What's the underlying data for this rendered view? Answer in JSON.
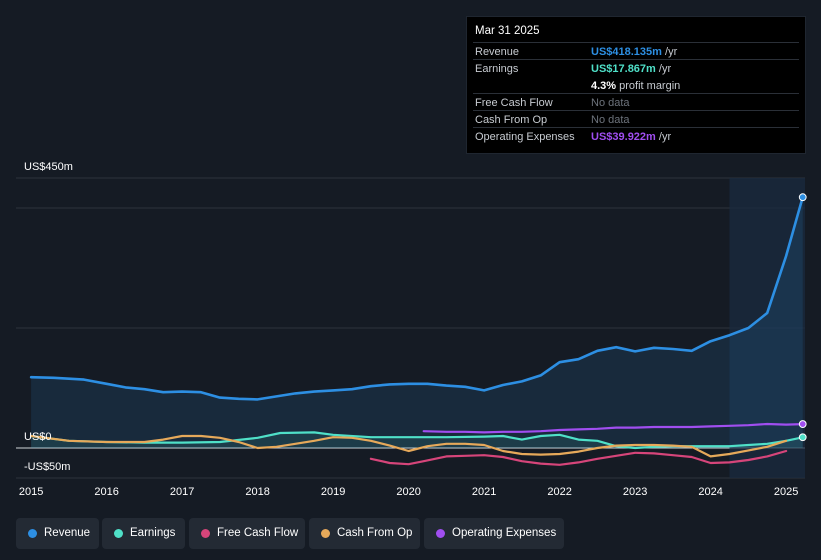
{
  "tooltip": {
    "date": "Mar 31 2025",
    "rows": [
      {
        "label": "Revenue",
        "value": "US$418.135m",
        "unit": "/yr",
        "color": "#2d8fe3"
      },
      {
        "label": "Earnings",
        "value": "US$17.867m",
        "unit": "/yr",
        "color": "#4fe0c8"
      },
      {
        "label": "",
        "value": "4.3%",
        "unit": "profit margin",
        "color": "#ffffff"
      },
      {
        "label": "Free Cash Flow",
        "value": "No data",
        "unit": "",
        "color": "#6d737c"
      },
      {
        "label": "Cash From Op",
        "value": "No data",
        "unit": "",
        "color": "#6d737c"
      },
      {
        "label": "Operating Expenses",
        "value": "US$39.922m",
        "unit": "/yr",
        "color": "#a04ef0"
      }
    ]
  },
  "legend": [
    {
      "label": "Revenue",
      "color": "#2d8fe3"
    },
    {
      "label": "Earnings",
      "color": "#4fe0c8"
    },
    {
      "label": "Free Cash Flow",
      "color": "#d6457a"
    },
    {
      "label": "Cash From Op",
      "color": "#e6a95a"
    },
    {
      "label": "Operating Expenses",
      "color": "#a04ef0"
    }
  ],
  "chart_data": {
    "type": "line",
    "title": "",
    "xlabel": "",
    "ylabel": "",
    "ylim": [
      -50,
      450
    ],
    "xlim": [
      2014.8,
      2025.25
    ],
    "y_tick_labels": [
      {
        "value": 450,
        "label": "US$450m"
      },
      {
        "value": 0,
        "label": "US$0"
      },
      {
        "value": -50,
        "label": "-US$50m"
      }
    ],
    "gridlines": [
      400,
      200
    ],
    "x_ticks": [
      2015,
      2016,
      2017,
      2018,
      2019,
      2020,
      2021,
      2022,
      2023,
      2024,
      2025
    ],
    "x_tick_labels": [
      "2015",
      "2016",
      "2017",
      "2018",
      "2019",
      "2020",
      "2021",
      "2022",
      "2023",
      "2024",
      "2025"
    ],
    "forecast_from": 2024.25,
    "series": [
      {
        "name": "Revenue",
        "color": "#2d8fe3",
        "end_marker": true,
        "area": true,
        "points": [
          [
            2015.0,
            118
          ],
          [
            2015.3,
            117
          ],
          [
            2015.7,
            114
          ],
          [
            2016.0,
            107
          ],
          [
            2016.25,
            101
          ],
          [
            2016.5,
            98
          ],
          [
            2016.75,
            93
          ],
          [
            2017.0,
            94
          ],
          [
            2017.25,
            93
          ],
          [
            2017.5,
            84
          ],
          [
            2017.75,
            82
          ],
          [
            2018.0,
            81
          ],
          [
            2018.25,
            86
          ],
          [
            2018.5,
            91
          ],
          [
            2018.75,
            94
          ],
          [
            2019.0,
            96
          ],
          [
            2019.25,
            98
          ],
          [
            2019.5,
            103
          ],
          [
            2019.75,
            106
          ],
          [
            2020.0,
            107
          ],
          [
            2020.25,
            107
          ],
          [
            2020.5,
            104
          ],
          [
            2020.75,
            102
          ],
          [
            2021.0,
            96
          ],
          [
            2021.25,
            105
          ],
          [
            2021.5,
            111
          ],
          [
            2021.75,
            121
          ],
          [
            2022.0,
            143
          ],
          [
            2022.25,
            148
          ],
          [
            2022.5,
            162
          ],
          [
            2022.75,
            168
          ],
          [
            2023.0,
            161
          ],
          [
            2023.25,
            167
          ],
          [
            2023.5,
            165
          ],
          [
            2023.75,
            162
          ],
          [
            2024.0,
            178
          ],
          [
            2024.25,
            188
          ],
          [
            2024.5,
            200
          ],
          [
            2024.75,
            225
          ],
          [
            2025.0,
            320
          ],
          [
            2025.22,
            418
          ]
        ]
      },
      {
        "name": "Earnings",
        "color": "#4fe0c8",
        "end_marker": true,
        "area": true,
        "points": [
          [
            2015.0,
            20
          ],
          [
            2015.5,
            12
          ],
          [
            2016.0,
            10
          ],
          [
            2016.5,
            9
          ],
          [
            2017.0,
            9
          ],
          [
            2017.5,
            10
          ],
          [
            2018.0,
            17
          ],
          [
            2018.3,
            25
          ],
          [
            2018.75,
            26
          ],
          [
            2019.0,
            22
          ],
          [
            2019.5,
            18
          ],
          [
            2020.0,
            18
          ],
          [
            2020.5,
            18
          ],
          [
            2021.0,
            19
          ],
          [
            2021.25,
            20
          ],
          [
            2021.5,
            14
          ],
          [
            2021.75,
            20
          ],
          [
            2022.0,
            22
          ],
          [
            2022.25,
            14
          ],
          [
            2022.5,
            12
          ],
          [
            2022.75,
            3
          ],
          [
            2023.0,
            0
          ],
          [
            2023.25,
            2
          ],
          [
            2023.5,
            3
          ],
          [
            2023.75,
            3
          ],
          [
            2024.0,
            3
          ],
          [
            2024.25,
            3
          ],
          [
            2024.5,
            5
          ],
          [
            2024.75,
            7
          ],
          [
            2025.0,
            12
          ],
          [
            2025.22,
            17.9
          ]
        ]
      },
      {
        "name": "Free Cash Flow",
        "color": "#d6457a",
        "end_marker": false,
        "area": false,
        "points": [
          [
            2019.5,
            -18
          ],
          [
            2019.75,
            -25
          ],
          [
            2020.0,
            -27
          ],
          [
            2020.2,
            -22
          ],
          [
            2020.5,
            -14
          ],
          [
            2020.75,
            -13
          ],
          [
            2021.0,
            -12
          ],
          [
            2021.25,
            -15
          ],
          [
            2021.5,
            -22
          ],
          [
            2021.75,
            -26
          ],
          [
            2022.0,
            -28
          ],
          [
            2022.25,
            -24
          ],
          [
            2022.5,
            -18
          ],
          [
            2022.75,
            -13
          ],
          [
            2023.0,
            -8
          ],
          [
            2023.25,
            -9
          ],
          [
            2023.5,
            -12
          ],
          [
            2023.75,
            -15
          ],
          [
            2024.0,
            -25
          ],
          [
            2024.25,
            -24
          ],
          [
            2024.5,
            -20
          ],
          [
            2024.75,
            -14
          ],
          [
            2025.0,
            -5
          ]
        ]
      },
      {
        "name": "Cash From Op",
        "color": "#e6a95a",
        "end_marker": false,
        "area": false,
        "points": [
          [
            2015.0,
            20
          ],
          [
            2015.5,
            12
          ],
          [
            2016.0,
            10
          ],
          [
            2016.5,
            10
          ],
          [
            2016.75,
            14
          ],
          [
            2017.0,
            20
          ],
          [
            2017.25,
            20
          ],
          [
            2017.5,
            17
          ],
          [
            2017.75,
            10
          ],
          [
            2018.0,
            0
          ],
          [
            2018.25,
            2
          ],
          [
            2018.5,
            7
          ],
          [
            2018.75,
            12
          ],
          [
            2019.0,
            18
          ],
          [
            2019.25,
            17
          ],
          [
            2019.5,
            12
          ],
          [
            2019.75,
            4
          ],
          [
            2020.0,
            -5
          ],
          [
            2020.25,
            3
          ],
          [
            2020.5,
            7
          ],
          [
            2020.75,
            7
          ],
          [
            2021.0,
            5
          ],
          [
            2021.25,
            -5
          ],
          [
            2021.5,
            -10
          ],
          [
            2021.75,
            -11
          ],
          [
            2022.0,
            -10
          ],
          [
            2022.25,
            -6
          ],
          [
            2022.5,
            0
          ],
          [
            2022.75,
            4
          ],
          [
            2023.0,
            5
          ],
          [
            2023.25,
            5
          ],
          [
            2023.5,
            4
          ],
          [
            2023.75,
            2
          ],
          [
            2024.0,
            -14
          ],
          [
            2024.25,
            -10
          ],
          [
            2024.5,
            -4
          ],
          [
            2024.75,
            2
          ],
          [
            2025.0,
            12
          ]
        ]
      },
      {
        "name": "Operating Expenses",
        "color": "#a04ef0",
        "end_marker": true,
        "area": false,
        "points": [
          [
            2020.2,
            28
          ],
          [
            2020.5,
            27
          ],
          [
            2020.75,
            27
          ],
          [
            2021.0,
            26
          ],
          [
            2021.25,
            27
          ],
          [
            2021.5,
            27
          ],
          [
            2021.75,
            28
          ],
          [
            2022.0,
            30
          ],
          [
            2022.25,
            31
          ],
          [
            2022.5,
            32
          ],
          [
            2022.75,
            34
          ],
          [
            2023.0,
            34
          ],
          [
            2023.25,
            35
          ],
          [
            2023.5,
            35
          ],
          [
            2023.75,
            35
          ],
          [
            2024.0,
            36
          ],
          [
            2024.25,
            37
          ],
          [
            2024.5,
            38
          ],
          [
            2024.75,
            40
          ],
          [
            2025.0,
            39
          ],
          [
            2025.22,
            39.9
          ]
        ]
      }
    ]
  }
}
